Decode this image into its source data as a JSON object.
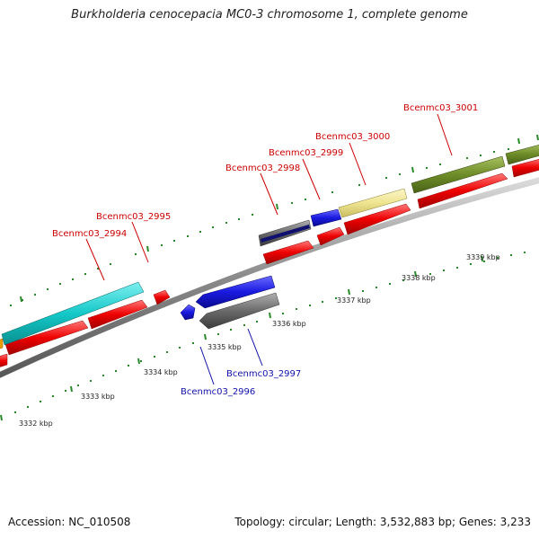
{
  "title": "Burkholderia cenocepacia MC0-3 chromosome 1, complete genome",
  "footer": {
    "accession": "Accession: NC_010508",
    "summary": "Topology: circular; Length: 3,532,883 bp; Genes: 3,233"
  },
  "scale_labels": [
    "3332 kbp",
    "3333 kbp",
    "3334 kbp",
    "3335 kbp",
    "3336 kbp",
    "3337 kbp",
    "3338 kbp",
    "3339 kbp"
  ],
  "gene_labels": {
    "top": [
      "Bcenmc03_2994",
      "Bcenmc03_2995",
      "Bcenmc03_2998",
      "Bcenmc03_2999",
      "Bcenmc03_3000",
      "Bcenmc03_3001"
    ],
    "bottom": [
      "Bcenmc03_2996",
      "Bcenmc03_2997"
    ]
  },
  "colors": {
    "top_label": "#cc0000",
    "bottom_label": "#1111aa",
    "tick": "#2a8a2a",
    "rna": "#ff0000",
    "backbone": "#888888",
    "cyan_gene": "#14c8c8",
    "olive_gene": "#6e8c28",
    "yellow_gene": "#eee490",
    "blue_gene": "#1a1ae0",
    "gray_gene": "#6a6a6a",
    "navy_gene": "#10106e"
  }
}
